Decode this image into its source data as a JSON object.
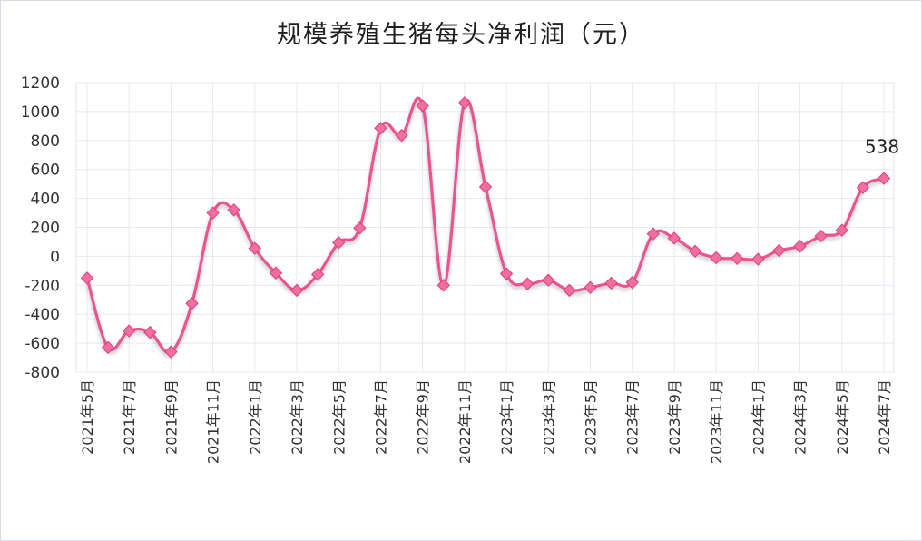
{
  "chart_data": {
    "type": "line",
    "title": "规模养殖生猪每头净利润（元）",
    "xlabel": "",
    "ylabel": "",
    "ylim": [
      -800,
      1200
    ],
    "yticks": [
      1200,
      1000,
      800,
      600,
      400,
      200,
      0,
      -200,
      -400,
      -600,
      -800
    ],
    "grid": true,
    "legend": "none",
    "x_tick_labels": [
      "2021年5月",
      "2021年7月",
      "2021年9月",
      "2021年11月",
      "2022年1月",
      "2022年3月",
      "2022年5月",
      "2022年7月",
      "2022年9月",
      "2022年11月",
      "2023年1月",
      "2023年3月",
      "2023年5月",
      "2023年7月",
      "2023年9月",
      "2023年11月",
      "2024年1月",
      "2024年3月",
      "2024年5月",
      "2024年7月"
    ],
    "series": [
      {
        "name": "",
        "color": "#e9558f",
        "marker_color": "#f26ea0",
        "values": [
          -150,
          -630,
          -515,
          -525,
          -660,
          -325,
          300,
          320,
          55,
          -115,
          -235,
          -125,
          95,
          195,
          885,
          835,
          1040,
          -200,
          1060,
          480,
          -120,
          -190,
          -165,
          -235,
          -215,
          -185,
          -180,
          155,
          125,
          35,
          -10,
          -15,
          -20,
          40,
          70,
          140,
          180,
          475,
          538
        ]
      }
    ],
    "annotations": [
      {
        "label": "538",
        "point_index": 38
      }
    ]
  }
}
